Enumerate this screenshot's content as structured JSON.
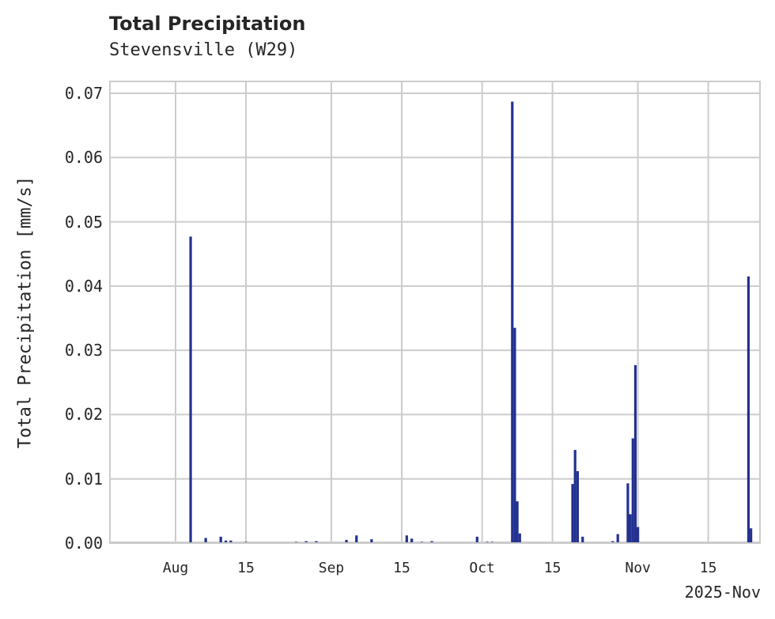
{
  "chart_data": {
    "type": "bar",
    "title": "Total Precipitation",
    "subtitle": "Stevensville (W29)",
    "xlabel": "",
    "ylabel": "Total Precipitation [mm/s]",
    "x_offset_label": "2025-Nov",
    "ylim": [
      0,
      0.072
    ],
    "grid": true,
    "legend": null,
    "color": "#22318f",
    "y_ticks": [
      "0.00",
      "0.01",
      "0.02",
      "0.03",
      "0.04",
      "0.05",
      "0.06",
      "0.07"
    ],
    "x_ticks": [
      "Aug",
      "15",
      "Sep",
      "15",
      "Oct",
      "15",
      "Nov",
      "15"
    ],
    "x_range": [
      "2025-07-19",
      "2025-11-25"
    ],
    "points": [
      {
        "x": "2025-08-04",
        "y": 0.0477
      },
      {
        "x": "2025-08-07",
        "y": 0.0008
      },
      {
        "x": "2025-08-10",
        "y": 0.001
      },
      {
        "x": "2025-08-11",
        "y": 0.0004
      },
      {
        "x": "2025-08-12",
        "y": 0.0004
      },
      {
        "x": "2025-08-15",
        "y": 0.0002
      },
      {
        "x": "2025-08-19",
        "y": 0.0001
      },
      {
        "x": "2025-08-25",
        "y": 0.0002
      },
      {
        "x": "2025-08-27",
        "y": 0.0003
      },
      {
        "x": "2025-08-29",
        "y": 0.0003
      },
      {
        "x": "2025-09-04",
        "y": 0.0005
      },
      {
        "x": "2025-09-06",
        "y": 0.0012
      },
      {
        "x": "2025-09-09",
        "y": 0.0006
      },
      {
        "x": "2025-09-13",
        "y": 0.0001
      },
      {
        "x": "2025-09-16",
        "y": 0.0012
      },
      {
        "x": "2025-09-17",
        "y": 0.0007
      },
      {
        "x": "2025-09-19",
        "y": 0.0002
      },
      {
        "x": "2025-09-21",
        "y": 0.0003
      },
      {
        "x": "2025-09-24",
        "y": 0.0001
      },
      {
        "x": "2025-09-30",
        "y": 0.001
      },
      {
        "x": "2025-10-02",
        "y": 0.0002
      },
      {
        "x": "2025-10-03",
        "y": 0.0002
      },
      {
        "x": "2025-10-07",
        "y": 0.0687
      },
      {
        "x": "2025-10-07.5",
        "y": 0.0335
      },
      {
        "x": "2025-10-08",
        "y": 0.0065
      },
      {
        "x": "2025-10-08.5",
        "y": 0.0015
      },
      {
        "x": "2025-10-19",
        "y": 0.0092
      },
      {
        "x": "2025-10-19.5",
        "y": 0.0145
      },
      {
        "x": "2025-10-20",
        "y": 0.0112
      },
      {
        "x": "2025-10-21",
        "y": 0.001
      },
      {
        "x": "2025-10-27",
        "y": 0.0003
      },
      {
        "x": "2025-10-28",
        "y": 0.0014
      },
      {
        "x": "2025-10-30",
        "y": 0.0093
      },
      {
        "x": "2025-10-30.5",
        "y": 0.0045
      },
      {
        "x": "2025-10-31",
        "y": 0.0163
      },
      {
        "x": "2025-10-31.5",
        "y": 0.0277
      },
      {
        "x": "2025-11-01",
        "y": 0.0025
      },
      {
        "x": "2025-11-23",
        "y": 0.0415
      },
      {
        "x": "2025-11-23.5",
        "y": 0.0023
      }
    ]
  }
}
